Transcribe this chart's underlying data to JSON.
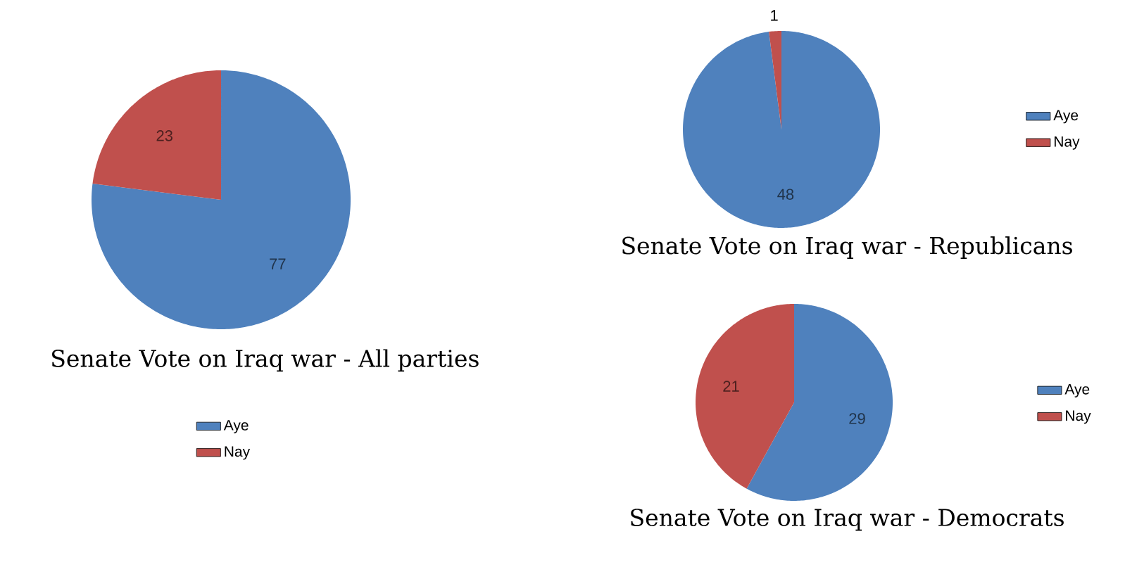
{
  "chart_data": [
    {
      "type": "pie",
      "title": "Senate Vote on Iraq war - All parties",
      "categories": [
        "Aye",
        "Nay"
      ],
      "values": [
        77,
        23
      ],
      "colors": [
        "#4f81bd",
        "#c0504d"
      ],
      "data_labels": true,
      "legend": "bottom"
    },
    {
      "type": "pie",
      "title": "Senate Vote on Iraq war - Republicans",
      "categories": [
        "Aye",
        "Nay"
      ],
      "values": [
        48,
        1
      ],
      "colors": [
        "#4f81bd",
        "#c0504d"
      ],
      "data_labels": true,
      "legend": "right"
    },
    {
      "type": "pie",
      "title": "Senate Vote on Iraq war - Democrats",
      "categories": [
        "Aye",
        "Nay"
      ],
      "values": [
        29,
        21
      ],
      "colors": [
        "#4f81bd",
        "#c0504d"
      ],
      "data_labels": true,
      "legend": "right"
    }
  ]
}
